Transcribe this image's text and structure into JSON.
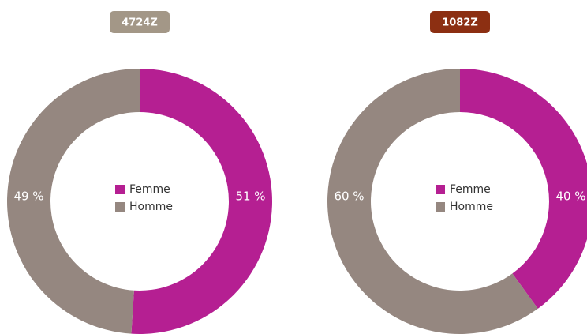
{
  "chart_data": [
    {
      "type": "donut",
      "title": "4724Z",
      "title_color": "#a39787",
      "categories": [
        "Femme",
        "Homme"
      ],
      "values": [
        51,
        49
      ],
      "value_labels": [
        "51 %",
        "49 %"
      ],
      "colors": [
        "#b51f92",
        "#958780"
      ]
    },
    {
      "type": "donut",
      "title": "1082Z",
      "title_color": "#8c2f12",
      "categories": [
        "Femme",
        "Homme"
      ],
      "values": [
        40,
        60
      ],
      "value_labels": [
        "40 %",
        "60 %"
      ],
      "colors": [
        "#b51f92",
        "#958780"
      ]
    }
  ]
}
